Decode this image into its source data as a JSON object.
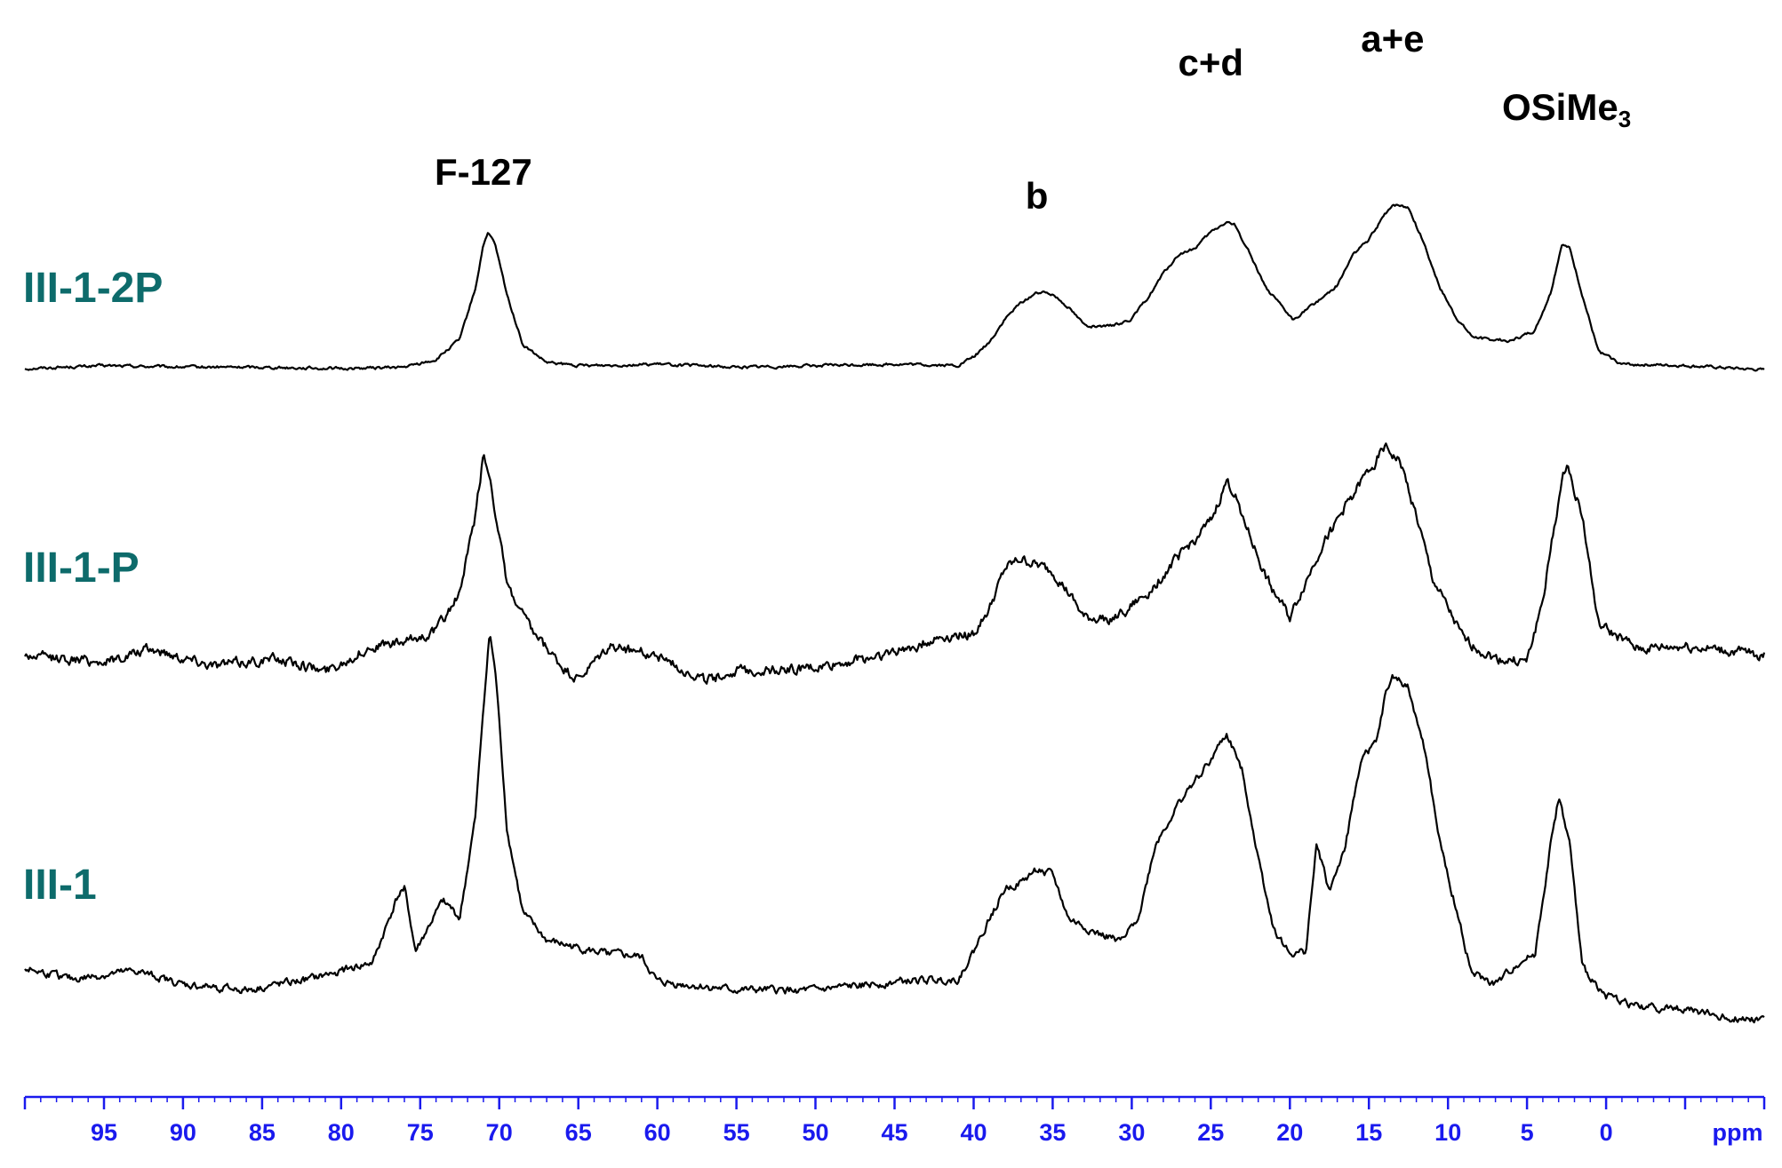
{
  "chart_data": {
    "type": "line",
    "title": "",
    "xlabel": "ppm",
    "ylabel": "",
    "xlim": [
      100,
      -10
    ],
    "x_reversed": true,
    "grid": false,
    "x_ticks": [
      95,
      90,
      85,
      80,
      75,
      70,
      65,
      60,
      55,
      50,
      45,
      40,
      35,
      30,
      25,
      20,
      15,
      10,
      5,
      0
    ],
    "x_minor_step": 1,
    "axis_color": "#1a1aee",
    "label_color": "#0d6b6b",
    "series": [
      {
        "name": "III-1-2P",
        "points": [
          [
            100,
            0.0
          ],
          [
            95,
            0.02
          ],
          [
            90,
            0.01
          ],
          [
            85,
            0.01
          ],
          [
            80,
            0.0
          ],
          [
            76,
            0.01
          ],
          [
            74,
            0.06
          ],
          [
            72.5,
            0.2
          ],
          [
            71.5,
            0.55
          ],
          [
            71,
            0.85
          ],
          [
            70.7,
            0.92
          ],
          [
            70.3,
            0.86
          ],
          [
            69.5,
            0.5
          ],
          [
            68.5,
            0.16
          ],
          [
            67,
            0.04
          ],
          [
            65,
            0.02
          ],
          [
            60,
            0.03
          ],
          [
            55,
            0.01
          ],
          [
            50,
            0.02
          ],
          [
            45,
            0.03
          ],
          [
            41,
            0.02
          ],
          [
            40,
            0.08
          ],
          [
            39,
            0.18
          ],
          [
            38,
            0.34
          ],
          [
            37,
            0.45
          ],
          [
            36,
            0.52
          ],
          [
            35,
            0.51
          ],
          [
            34,
            0.42
          ],
          [
            33,
            0.3
          ],
          [
            32,
            0.28
          ],
          [
            31,
            0.3
          ],
          [
            30,
            0.34
          ],
          [
            29,
            0.48
          ],
          [
            28,
            0.65
          ],
          [
            27,
            0.78
          ],
          [
            26,
            0.82
          ],
          [
            25,
            0.93
          ],
          [
            24,
            1.0
          ],
          [
            23.5,
            0.98
          ],
          [
            22.5,
            0.78
          ],
          [
            21.5,
            0.55
          ],
          [
            20.5,
            0.42
          ],
          [
            19.8,
            0.33
          ],
          [
            19,
            0.4
          ],
          [
            18,
            0.48
          ],
          [
            17,
            0.57
          ],
          [
            16,
            0.78
          ],
          [
            15,
            0.88
          ],
          [
            14,
            1.05
          ],
          [
            13.5,
            1.12
          ],
          [
            12.5,
            1.1
          ],
          [
            11.5,
            0.85
          ],
          [
            10.5,
            0.55
          ],
          [
            9.5,
            0.35
          ],
          [
            8.5,
            0.22
          ],
          [
            7.5,
            0.2
          ],
          [
            6,
            0.19
          ],
          [
            4.5,
            0.26
          ],
          [
            3.5,
            0.52
          ],
          [
            2.8,
            0.85
          ],
          [
            2.3,
            0.82
          ],
          [
            1.5,
            0.5
          ],
          [
            0.5,
            0.12
          ],
          [
            -1,
            0.03
          ],
          [
            -5,
            0.02
          ],
          [
            -10,
            -0.01
          ]
        ]
      },
      {
        "name": "III-1-P",
        "points": [
          [
            100,
            0.0
          ],
          [
            95,
            -0.02
          ],
          [
            92,
            0.02
          ],
          [
            88,
            -0.03
          ],
          [
            84,
            -0.01
          ],
          [
            81,
            -0.05
          ],
          [
            78,
            0.03
          ],
          [
            76,
            0.04
          ],
          [
            74,
            0.08
          ],
          [
            72.5,
            0.2
          ],
          [
            71.5,
            0.45
          ],
          [
            71,
            0.65
          ],
          [
            70.5,
            0.55
          ],
          [
            69.5,
            0.22
          ],
          [
            68,
            0.08
          ],
          [
            66,
            -0.04
          ],
          [
            65,
            -0.08
          ],
          [
            63,
            0.03
          ],
          [
            60,
            0.0
          ],
          [
            57,
            -0.08
          ],
          [
            55,
            -0.05
          ],
          [
            50,
            -0.04
          ],
          [
            45,
            0.01
          ],
          [
            42,
            0.06
          ],
          [
            40,
            0.07
          ],
          [
            39,
            0.15
          ],
          [
            38,
            0.28
          ],
          [
            37,
            0.31
          ],
          [
            35,
            0.27
          ],
          [
            34,
            0.2
          ],
          [
            33,
            0.12
          ],
          [
            31,
            0.12
          ],
          [
            29,
            0.2
          ],
          [
            27,
            0.32
          ],
          [
            25,
            0.43
          ],
          [
            24,
            0.56
          ],
          [
            23.5,
            0.52
          ],
          [
            22.5,
            0.38
          ],
          [
            21.5,
            0.25
          ],
          [
            20,
            0.12
          ],
          [
            19.5,
            0.18
          ],
          [
            18,
            0.35
          ],
          [
            16,
            0.52
          ],
          [
            14,
            0.67
          ],
          [
            13,
            0.62
          ],
          [
            12,
            0.45
          ],
          [
            11,
            0.25
          ],
          [
            9,
            0.05
          ],
          [
            7,
            -0.01
          ],
          [
            5,
            -0.02
          ],
          [
            4,
            0.18
          ],
          [
            3,
            0.5
          ],
          [
            2.5,
            0.62
          ],
          [
            1.5,
            0.45
          ],
          [
            0.5,
            0.1
          ],
          [
            -2,
            0.02
          ],
          [
            -5,
            0.03
          ],
          [
            -10,
            0.0
          ]
        ]
      },
      {
        "name": "III-1",
        "points": [
          [
            100,
            0.0
          ],
          [
            97,
            -0.04
          ],
          [
            93,
            -0.01
          ],
          [
            90,
            -0.06
          ],
          [
            86,
            -0.08
          ],
          [
            82,
            -0.04
          ],
          [
            78,
            0.02
          ],
          [
            76.5,
            0.25
          ],
          [
            76,
            0.3
          ],
          [
            75.3,
            0.06
          ],
          [
            74,
            0.2
          ],
          [
            73.5,
            0.25
          ],
          [
            72.5,
            0.18
          ],
          [
            71.5,
            0.55
          ],
          [
            71,
            0.95
          ],
          [
            70.6,
            1.22
          ],
          [
            70.2,
            1.05
          ],
          [
            69.5,
            0.5
          ],
          [
            68.5,
            0.2
          ],
          [
            67,
            0.1
          ],
          [
            64,
            0.06
          ],
          [
            61,
            0.04
          ],
          [
            60,
            -0.05
          ],
          [
            55,
            -0.08
          ],
          [
            50,
            -0.08
          ],
          [
            45,
            -0.05
          ],
          [
            41,
            -0.04
          ],
          [
            40,
            0.06
          ],
          [
            39,
            0.18
          ],
          [
            38,
            0.29
          ],
          [
            37,
            0.31
          ],
          [
            36,
            0.36
          ],
          [
            35,
            0.34
          ],
          [
            34,
            0.18
          ],
          [
            32,
            0.12
          ],
          [
            30.5,
            0.1
          ],
          [
            29.5,
            0.2
          ],
          [
            28.5,
            0.45
          ],
          [
            27,
            0.6
          ],
          [
            26,
            0.68
          ],
          [
            25,
            0.76
          ],
          [
            24,
            0.85
          ],
          [
            23,
            0.72
          ],
          [
            22,
            0.4
          ],
          [
            21,
            0.14
          ],
          [
            20,
            0.05
          ],
          [
            19,
            0.06
          ],
          [
            18.3,
            0.45
          ],
          [
            17.5,
            0.28
          ],
          [
            16.5,
            0.44
          ],
          [
            15.5,
            0.76
          ],
          [
            14.5,
            0.82
          ],
          [
            14,
            0.98
          ],
          [
            13.5,
            1.06
          ],
          [
            12.5,
            1.02
          ],
          [
            11.5,
            0.8
          ],
          [
            10.5,
            0.45
          ],
          [
            9.5,
            0.22
          ],
          [
            8.5,
            -0.02
          ],
          [
            7,
            -0.06
          ],
          [
            5.5,
            0.02
          ],
          [
            4.5,
            0.05
          ],
          [
            3.5,
            0.45
          ],
          [
            3,
            0.62
          ],
          [
            2.3,
            0.45
          ],
          [
            1.5,
            0.0
          ],
          [
            0,
            -0.1
          ],
          [
            -2,
            -0.14
          ],
          [
            -5,
            -0.15
          ],
          [
            -8,
            -0.18
          ],
          [
            -10,
            -0.18
          ]
        ]
      }
    ],
    "annotations": [
      {
        "text": "F-127",
        "x": 71
      },
      {
        "text": "b",
        "x": 36
      },
      {
        "text": "c+d",
        "x": 25
      },
      {
        "text": "a+e",
        "x": 13.5
      },
      {
        "text": "OSiMe",
        "subscript": "3",
        "x": 2.5
      }
    ]
  }
}
